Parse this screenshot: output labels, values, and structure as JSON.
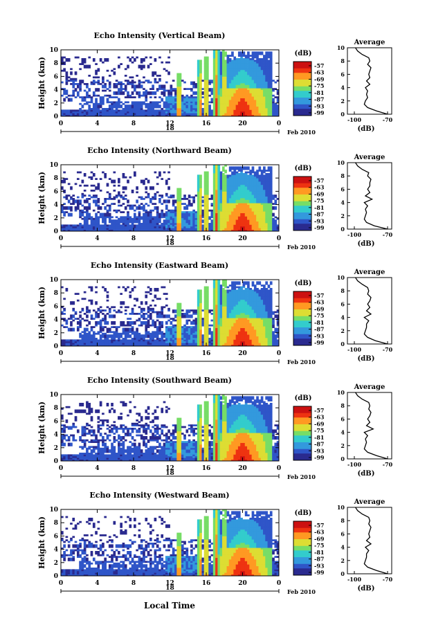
{
  "figure": {
    "time_label": "Local Time",
    "colorbar_unit": "(dB)",
    "colorbar_ticks": [
      "-57",
      "-63",
      "-69",
      "-75",
      "-81",
      "-87",
      "-93",
      "-99"
    ],
    "average_title": "Average",
    "average_unit": "(dB)",
    "average_x_ticks": [
      "-100",
      "-70"
    ],
    "height_label": "Height (km)"
  },
  "chart_data": [
    {
      "type": "heatmap",
      "title": "Echo Intensity (Vertical Beam)",
      "ylabel": "Height (km)",
      "ylim": [
        0,
        10
      ],
      "yticks": [
        "0",
        "2",
        "4",
        "6",
        "8",
        "10"
      ],
      "xticks": [
        "0",
        "4",
        "8",
        "12",
        "16",
        "20",
        "0"
      ],
      "xlim": [
        0,
        24
      ],
      "date_day": "18",
      "date_label": "Feb 2010",
      "colorbar_range_dB": [
        -99,
        -57
      ],
      "profile": {
        "title": "Average",
        "xlabel": "(dB)",
        "xlim": [
          -100,
          -70
        ],
        "height_km": [
          0,
          0.5,
          1,
          1.5,
          2,
          2.5,
          3,
          3.5,
          4,
          4.5,
          5,
          5.5,
          6,
          6.5,
          7,
          7.5,
          8,
          8.5,
          9,
          9.5,
          10
        ],
        "value_dB": [
          -70,
          -80,
          -88,
          -91,
          -90,
          -88,
          -89,
          -88,
          -90,
          -86,
          -89,
          -86,
          -87,
          -86,
          -85,
          -88,
          -86,
          -87,
          -93,
          -97,
          -99
        ]
      }
    },
    {
      "type": "heatmap",
      "title": "Echo Intensity (Northward Beam)",
      "ylabel": "Height (km)",
      "ylim": [
        0,
        10
      ],
      "yticks": [
        "0",
        "2",
        "4",
        "6",
        "8",
        "10"
      ],
      "xticks": [
        "0",
        "4",
        "8",
        "12",
        "16",
        "20",
        "0"
      ],
      "xlim": [
        0,
        24
      ],
      "date_day": "18",
      "date_label": "Feb 2010",
      "colorbar_range_dB": [
        -99,
        -57
      ],
      "profile": {
        "title": "Average",
        "xlabel": "(dB)",
        "xlim": [
          -100,
          -70
        ],
        "height_km": [
          0,
          0.5,
          1,
          1.5,
          2,
          2.5,
          3,
          3.5,
          4,
          4.5,
          5,
          5.5,
          6,
          6.5,
          7,
          7.5,
          8,
          8.5,
          9,
          9.5,
          10
        ],
        "value_dB": [
          -70,
          -82,
          -89,
          -91,
          -90,
          -89,
          -90,
          -88,
          -91,
          -84,
          -90,
          -86,
          -88,
          -86,
          -86,
          -85,
          -88,
          -87,
          -93,
          -97,
          -99
        ]
      }
    },
    {
      "type": "heatmap",
      "title": "Echo Intensity (Eastward Beam)",
      "ylabel": "Height (km)",
      "ylim": [
        0,
        10
      ],
      "yticks": [
        "0",
        "2",
        "4",
        "6",
        "8",
        "10"
      ],
      "xticks": [
        "0",
        "4",
        "8",
        "12",
        "16",
        "20",
        "0"
      ],
      "xlim": [
        0,
        24
      ],
      "date_day": "18",
      "date_label": "Feb 2010",
      "colorbar_range_dB": [
        -99,
        -57
      ],
      "profile": {
        "title": "Average",
        "xlabel": "(dB)",
        "xlim": [
          -100,
          -70
        ],
        "height_km": [
          0,
          0.5,
          1,
          1.5,
          2,
          2.5,
          3,
          3.5,
          4,
          4.5,
          5,
          5.5,
          6,
          6.5,
          7,
          7.5,
          8,
          8.5,
          9,
          9.5,
          10
        ],
        "value_dB": [
          -70,
          -81,
          -88,
          -91,
          -90,
          -89,
          -89,
          -87,
          -91,
          -85,
          -89,
          -86,
          -88,
          -86,
          -85,
          -88,
          -87,
          -88,
          -93,
          -97,
          -99
        ]
      }
    },
    {
      "type": "heatmap",
      "title": "Echo Intensity (Southward Beam)",
      "ylabel": "Height (km)",
      "ylim": [
        0,
        10
      ],
      "yticks": [
        "0",
        "2",
        "4",
        "6",
        "8",
        "10"
      ],
      "xticks": [
        "0",
        "4",
        "8",
        "12",
        "16",
        "20",
        "0"
      ],
      "xlim": [
        0,
        24
      ],
      "date_day": "18",
      "date_label": "Feb 2010",
      "colorbar_range_dB": [
        -99,
        -57
      ],
      "profile": {
        "title": "Average",
        "xlabel": "(dB)",
        "xlim": [
          -100,
          -70
        ],
        "height_km": [
          0,
          0.5,
          1,
          1.5,
          2,
          2.5,
          3,
          3.5,
          4,
          4.5,
          5,
          5.5,
          6,
          6.5,
          7,
          7.5,
          8,
          8.5,
          9,
          9.5,
          10
        ],
        "value_dB": [
          -70,
          -80,
          -88,
          -91,
          -90,
          -89,
          -90,
          -88,
          -91,
          -83,
          -89,
          -86,
          -88,
          -86,
          -85,
          -87,
          -86,
          -87,
          -93,
          -97,
          -99
        ]
      }
    },
    {
      "type": "heatmap",
      "title": "Echo Intensity (Westward Beam)",
      "ylabel": "Height (km)",
      "ylim": [
        0,
        10
      ],
      "yticks": [
        "0",
        "2",
        "4",
        "6",
        "8",
        "10"
      ],
      "xticks": [
        "0",
        "4",
        "8",
        "12",
        "16",
        "20",
        "0"
      ],
      "xlim": [
        0,
        24
      ],
      "date_day": "18",
      "date_label": "Feb 2010",
      "colorbar_range_dB": [
        -99,
        -57
      ],
      "profile": {
        "title": "Average",
        "xlabel": "(dB)",
        "xlim": [
          -100,
          -70
        ],
        "height_km": [
          0,
          0.5,
          1,
          1.5,
          2,
          2.5,
          3,
          3.5,
          4,
          4.5,
          5,
          5.5,
          6,
          6.5,
          7,
          7.5,
          8,
          8.5,
          9,
          9.5,
          10
        ],
        "value_dB": [
          -70,
          -80,
          -88,
          -91,
          -90,
          -89,
          -89,
          -87,
          -90,
          -85,
          -89,
          -86,
          -87,
          -86,
          -85,
          -87,
          -86,
          -87,
          -93,
          -97,
          -99
        ]
      }
    }
  ],
  "colors": {
    "scale": [
      "#2a2a8f",
      "#2f55c8",
      "#3399dd",
      "#33cccc",
      "#77dd66",
      "#dddd33",
      "#ff9922",
      "#ee3311",
      "#cc1111"
    ]
  }
}
